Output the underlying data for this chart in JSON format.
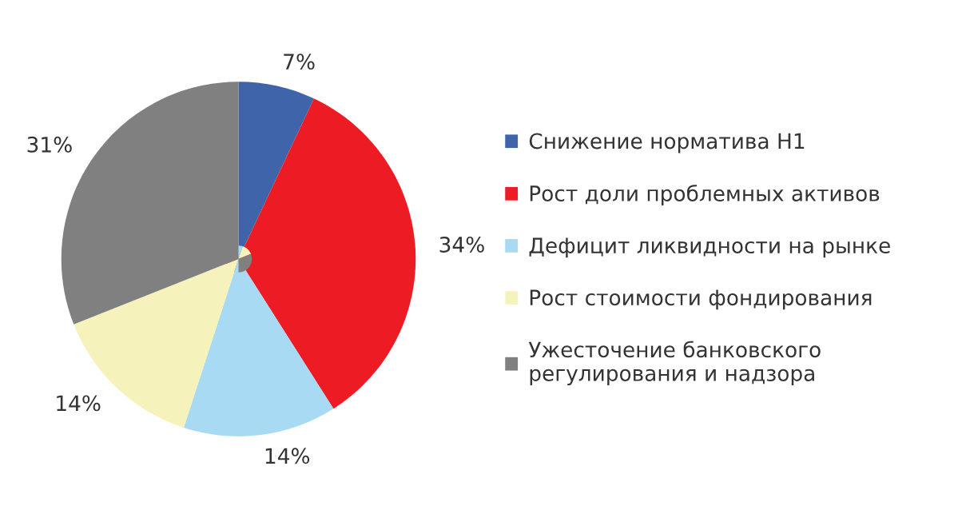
{
  "chart_data": {
    "type": "pie",
    "categories": [
      "Снижение норматива Н1",
      "Рост доли проблемных активов",
      "Дефицит ликвидности на рынке",
      "Рост стоимости фондирования",
      "Ужесточение банковского\nрегулирования и надзора"
    ],
    "values": [
      7,
      34,
      14,
      14,
      31
    ],
    "value_labels": [
      "7%",
      "34%",
      "14%",
      "14%",
      "31%"
    ],
    "colors": [
      "#3f64a9",
      "#ed1c24",
      "#a8daf4",
      "#f5f3bb",
      "#808080"
    ],
    "legend": "right"
  }
}
